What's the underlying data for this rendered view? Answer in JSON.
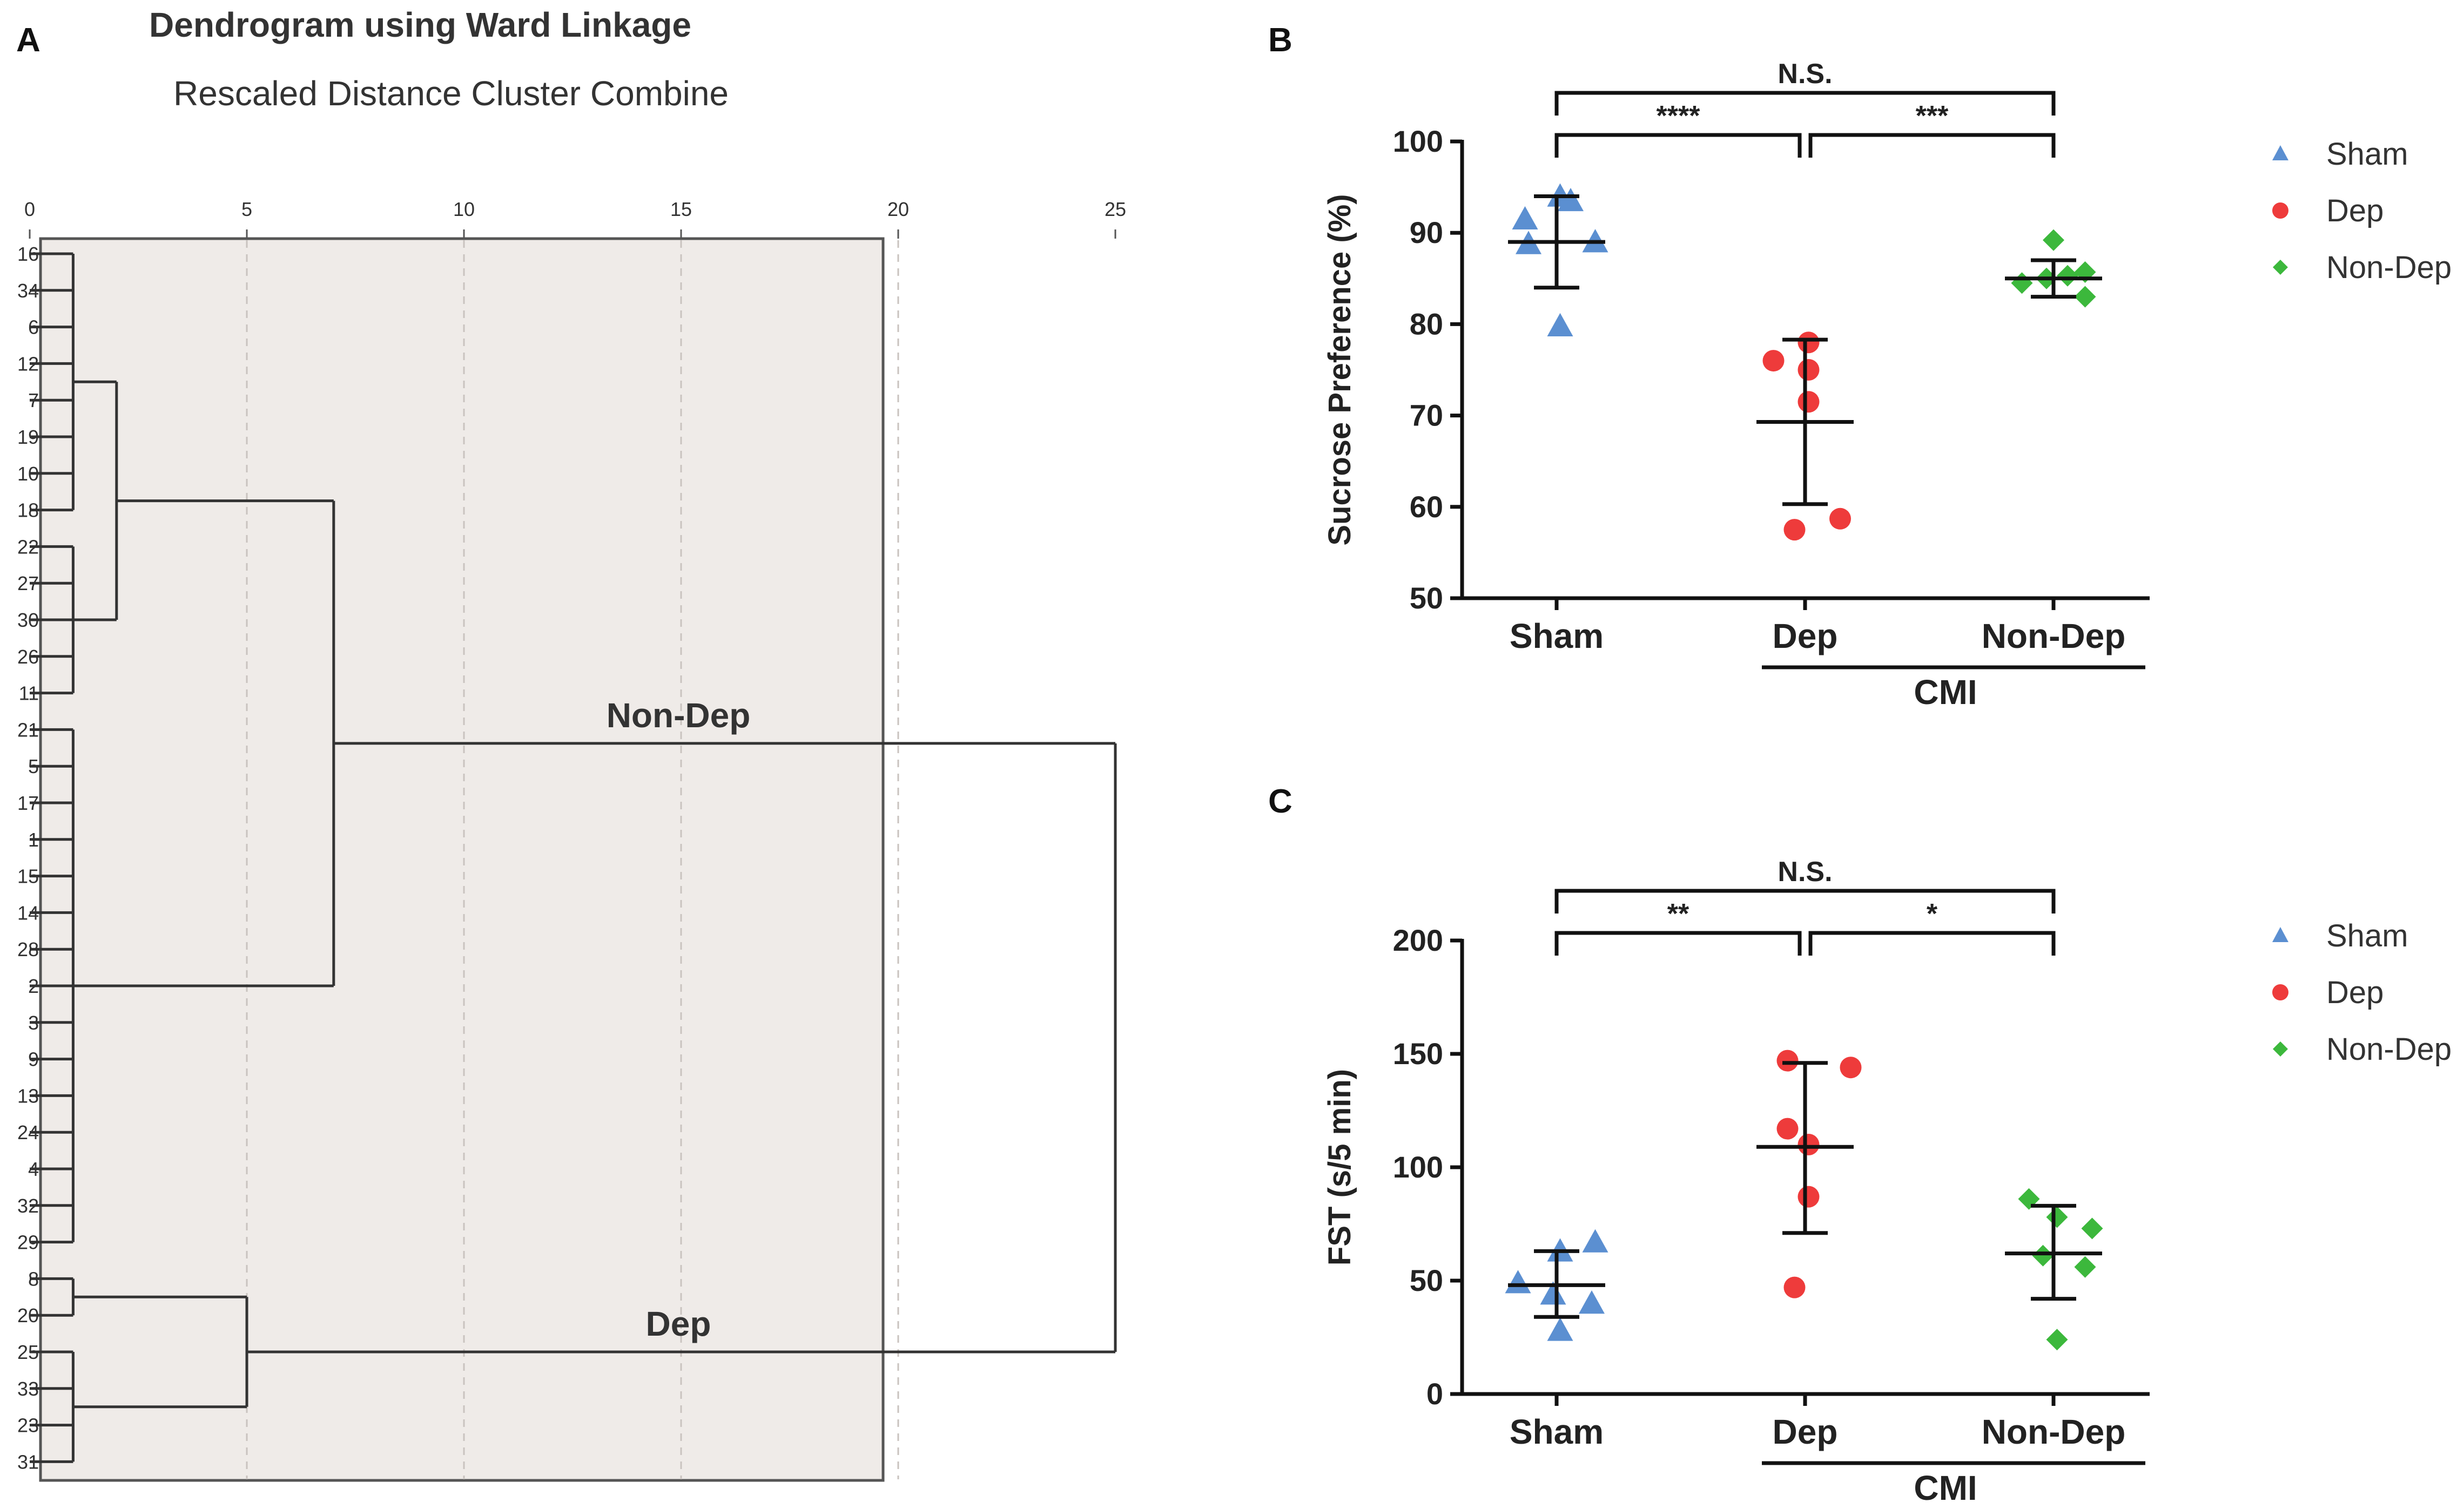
{
  "panels": {
    "a": {
      "letter": "A"
    },
    "b": {
      "letter": "B"
    },
    "c": {
      "letter": "C"
    }
  },
  "colors": {
    "sham": "#5b8fd1",
    "dep": "#ee3b3b",
    "nondep": "#3cb83c",
    "dendro_bg": "#efebe8",
    "ink": "#222222"
  },
  "chart_data": [
    {
      "id": "A",
      "type": "dendrogram",
      "title": "Dendrogram using Ward Linkage",
      "subtitle": "Rescaled Distance Cluster Combine",
      "xlim": [
        0,
        25
      ],
      "ticks": [
        0,
        5,
        10,
        15,
        20,
        25
      ],
      "leaves": [
        "16",
        "34",
        "6",
        "12",
        "7",
        "19",
        "10",
        "18",
        "22",
        "27",
        "30",
        "26",
        "11",
        "21",
        "5",
        "17",
        "1",
        "15",
        "14",
        "28",
        "2",
        "3",
        "9",
        "13",
        "24",
        "4",
        "32",
        "29",
        "8",
        "20",
        "25",
        "33",
        "23",
        "31"
      ],
      "merges": [
        {
          "a": [
            0,
            7
          ],
          "b": [
            8,
            12
          ],
          "height": 2
        },
        {
          "a": [
            0,
            12
          ],
          "b": [
            13,
            27
          ],
          "height": 7
        },
        {
          "a": [
            28,
            29
          ],
          "b": [
            30,
            33
          ],
          "height": 5
        },
        {
          "a": [
            0,
            27
          ],
          "b": [
            28,
            33
          ],
          "height": 25
        }
      ],
      "cluster_labels": [
        {
          "text": "Non-Dep",
          "leaf_span": [
            0,
            27
          ],
          "at_height": 15
        },
        {
          "text": "Dep",
          "leaf_span": [
            28,
            33
          ],
          "at_height": 15
        }
      ]
    },
    {
      "id": "B",
      "type": "scatter",
      "ylabel": "Sucrose Preference (%)",
      "ylim": [
        50,
        100
      ],
      "yticks": [
        "50",
        "60",
        "70",
        "80",
        "90",
        "100"
      ],
      "categories": [
        "Sham",
        "Dep",
        "Non-Dep"
      ],
      "group_label": "CMI",
      "series": [
        {
          "name": "Sham",
          "marker": "triangle",
          "values": [
            91.5,
            94,
            88.8,
            93.5,
            89,
            79.8
          ],
          "jitter": [
            -0.45,
            0.05,
            -0.4,
            0.2,
            0.55,
            0.05
          ],
          "mean": 89,
          "sd_low": 84,
          "sd_high": 94
        },
        {
          "name": "Dep",
          "marker": "circle",
          "values": [
            76,
            78,
            75,
            71.5,
            58.7,
            57.5
          ],
          "jitter": [
            -0.45,
            0.05,
            0.05,
            0.05,
            0.5,
            -0.15
          ],
          "mean": 69.3,
          "sd_low": 60.3,
          "sd_high": 78.3
        },
        {
          "name": "Non-Dep",
          "marker": "diamond",
          "values": [
            89.2,
            84.5,
            85,
            85.3,
            85.7,
            83
          ],
          "jitter": [
            0,
            -0.45,
            -0.1,
            0.2,
            0.45,
            0.45
          ],
          "mean": 85,
          "sd_low": 83,
          "sd_high": 87
        }
      ],
      "comparisons": [
        {
          "from": "Sham",
          "to": "Dep",
          "label": "****"
        },
        {
          "from": "Dep",
          "to": "Non-Dep",
          "label": "***"
        },
        {
          "from": "Sham",
          "to": "Non-Dep",
          "label": "N.S."
        }
      ],
      "legend": [
        "Sham",
        "Dep",
        "Non-Dep"
      ]
    },
    {
      "id": "C",
      "type": "scatter",
      "ylabel": "FST (s/5 min)",
      "ylim": [
        0,
        200
      ],
      "yticks": [
        "0",
        "50",
        "100",
        "150",
        "200"
      ],
      "categories": [
        "Sham",
        "Dep",
        "Non-Dep"
      ],
      "group_label": "CMI",
      "series": [
        {
          "name": "Sham",
          "marker": "triangle",
          "values": [
            49,
            63,
            67,
            44,
            40,
            28
          ],
          "jitter": [
            -0.55,
            0.05,
            0.55,
            -0.05,
            0.5,
            0.05
          ],
          "mean": 48,
          "sd_low": 34,
          "sd_high": 63
        },
        {
          "name": "Dep",
          "marker": "circle",
          "values": [
            147,
            144,
            117,
            110,
            87,
            47
          ],
          "jitter": [
            -0.25,
            0.65,
            -0.25,
            0.05,
            0.05,
            -0.15
          ],
          "mean": 109,
          "sd_low": 71,
          "sd_high": 146
        },
        {
          "name": "Non-Dep",
          "marker": "diamond",
          "values": [
            86,
            78,
            73,
            56,
            61,
            24
          ],
          "jitter": [
            -0.35,
            0.05,
            0.55,
            0.45,
            -0.15,
            0.05
          ],
          "mean": 62,
          "sd_low": 42,
          "sd_high": 83
        }
      ],
      "comparisons": [
        {
          "from": "Sham",
          "to": "Dep",
          "label": "**"
        },
        {
          "from": "Dep",
          "to": "Non-Dep",
          "label": "*"
        },
        {
          "from": "Sham",
          "to": "Non-Dep",
          "label": "N.S."
        }
      ],
      "legend": [
        "Sham",
        "Dep",
        "Non-Dep"
      ]
    }
  ]
}
